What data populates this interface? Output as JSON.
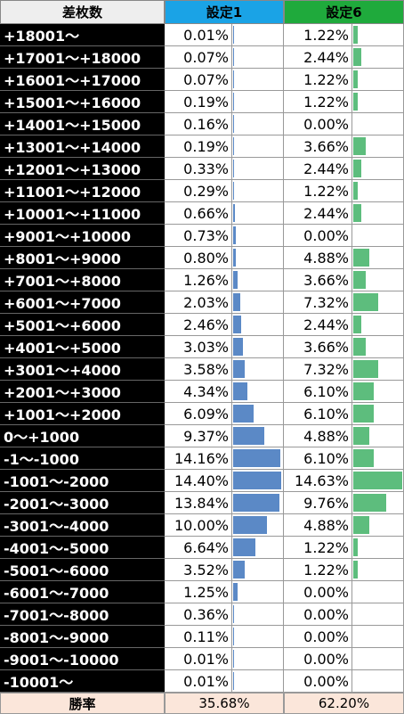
{
  "chart_data": {
    "type": "table",
    "header": {
      "label_col": "差枚数",
      "setting1": "設定1",
      "setting6": "設定6",
      "colors": {
        "label_header_bg": "#eeeeee",
        "setting1_header_bg": "#1aa3e6",
        "setting6_header_bg": "#1faa3c"
      }
    },
    "bar_colors": {
      "setting1": "#5b89c6",
      "setting6": "#5dbd7d"
    },
    "rows": [
      {
        "label": "+18001～",
        "s1": "0.01%",
        "s6": "1.22%",
        "v1": 0.01,
        "v6": 1.22
      },
      {
        "label": "+17001～+18000",
        "s1": "0.07%",
        "s6": "2.44%",
        "v1": 0.07,
        "v6": 2.44
      },
      {
        "label": "+16001～+17000",
        "s1": "0.07%",
        "s6": "1.22%",
        "v1": 0.07,
        "v6": 1.22
      },
      {
        "label": "+15001～+16000",
        "s1": "0.19%",
        "s6": "1.22%",
        "v1": 0.19,
        "v6": 1.22
      },
      {
        "label": "+14001～+15000",
        "s1": "0.16%",
        "s6": "0.00%",
        "v1": 0.16,
        "v6": 0.0
      },
      {
        "label": "+13001～+14000",
        "s1": "0.19%",
        "s6": "3.66%",
        "v1": 0.19,
        "v6": 3.66
      },
      {
        "label": "+12001～+13000",
        "s1": "0.33%",
        "s6": "2.44%",
        "v1": 0.33,
        "v6": 2.44
      },
      {
        "label": "+11001～+12000",
        "s1": "0.29%",
        "s6": "1.22%",
        "v1": 0.29,
        "v6": 1.22
      },
      {
        "label": "+10001～+11000",
        "s1": "0.66%",
        "s6": "2.44%",
        "v1": 0.66,
        "v6": 2.44
      },
      {
        "label": "+9001～+10000",
        "s1": "0.73%",
        "s6": "0.00%",
        "v1": 0.73,
        "v6": 0.0
      },
      {
        "label": "+8001～+9000",
        "s1": "0.80%",
        "s6": "4.88%",
        "v1": 0.8,
        "v6": 4.88
      },
      {
        "label": "+7001～+8000",
        "s1": "1.26%",
        "s6": "3.66%",
        "v1": 1.26,
        "v6": 3.66
      },
      {
        "label": "+6001～+7000",
        "s1": "2.03%",
        "s6": "7.32%",
        "v1": 2.03,
        "v6": 7.32
      },
      {
        "label": "+5001～+6000",
        "s1": "2.46%",
        "s6": "2.44%",
        "v1": 2.46,
        "v6": 2.44
      },
      {
        "label": "+4001～+5000",
        "s1": "3.03%",
        "s6": "3.66%",
        "v1": 3.03,
        "v6": 3.66
      },
      {
        "label": "+3001～+4000",
        "s1": "3.58%",
        "s6": "7.32%",
        "v1": 3.58,
        "v6": 7.32
      },
      {
        "label": "+2001～+3000",
        "s1": "4.34%",
        "s6": "6.10%",
        "v1": 4.34,
        "v6": 6.1
      },
      {
        "label": "+1001～+2000",
        "s1": "6.09%",
        "s6": "6.10%",
        "v1": 6.09,
        "v6": 6.1
      },
      {
        "label": "0～+1000",
        "s1": "9.37%",
        "s6": "4.88%",
        "v1": 9.37,
        "v6": 4.88
      },
      {
        "label": "-1～-1000",
        "s1": "14.16%",
        "s6": "6.10%",
        "v1": 14.16,
        "v6": 6.1
      },
      {
        "label": "-1001～-2000",
        "s1": "14.40%",
        "s6": "14.63%",
        "v1": 14.4,
        "v6": 14.63
      },
      {
        "label": "-2001～-3000",
        "s1": "13.84%",
        "s6": "9.76%",
        "v1": 13.84,
        "v6": 9.76
      },
      {
        "label": "-3001～-4000",
        "s1": "10.00%",
        "s6": "4.88%",
        "v1": 10.0,
        "v6": 4.88
      },
      {
        "label": "-4001～-5000",
        "s1": "6.64%",
        "s6": "1.22%",
        "v1": 6.64,
        "v6": 1.22
      },
      {
        "label": "-5001～-6000",
        "s1": "3.52%",
        "s6": "1.22%",
        "v1": 3.52,
        "v6": 1.22
      },
      {
        "label": "-6001～-7000",
        "s1": "1.25%",
        "s6": "0.00%",
        "v1": 1.25,
        "v6": 0.0
      },
      {
        "label": "-7001～-8000",
        "s1": "0.36%",
        "s6": "0.00%",
        "v1": 0.36,
        "v6": 0.0
      },
      {
        "label": "-8001～-9000",
        "s1": "0.11%",
        "s6": "0.00%",
        "v1": 0.11,
        "v6": 0.0
      },
      {
        "label": "-9001～-10000",
        "s1": "0.01%",
        "s6": "0.00%",
        "v1": 0.01,
        "v6": 0.0
      },
      {
        "label": "-10001～",
        "s1": "0.01%",
        "s6": "0.00%",
        "v1": 0.01,
        "v6": 0.0
      }
    ],
    "footer": {
      "label": "勝率",
      "s1": "35.68%",
      "s6": "62.20%",
      "bg": "#fbe6da"
    }
  }
}
